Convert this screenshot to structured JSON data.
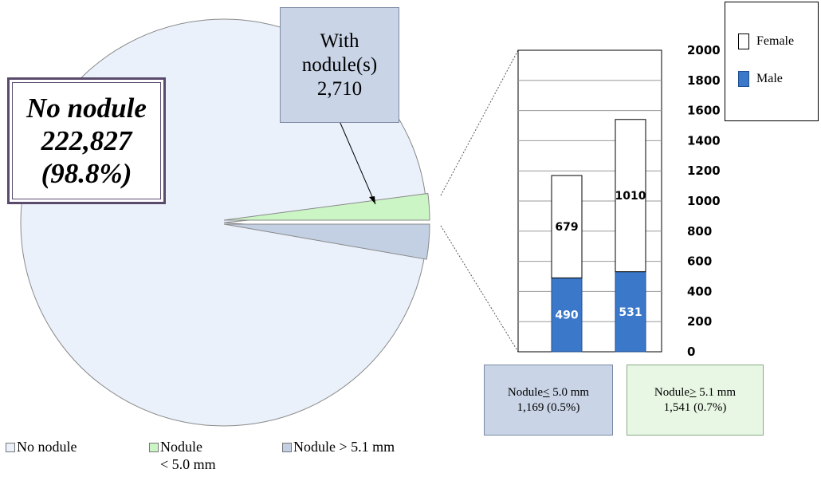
{
  "chart_data": [
    {
      "type": "pie",
      "slices": [
        {
          "label": "No nodule",
          "value": 222827,
          "color": "#eaf1fb"
        },
        {
          "label": "Nodule < 5.0 mm",
          "value": 1169,
          "color": "#ccf5c6"
        },
        {
          "label": "Nodule > 5.1 mm",
          "value": 1541,
          "color": "#c3cfe2"
        }
      ],
      "legend": [
        {
          "label": "No nodule",
          "color": "#eaf1fb"
        },
        {
          "label_line1": "Nodule",
          "label_line2": "< 5.0 mm",
          "color": "#ccf5c6"
        },
        {
          "label": "Nodule > 5.1 mm",
          "color": "#c3cfe2"
        }
      ],
      "legend_position": "bottom",
      "callouts": {
        "no_nodule": {
          "line1": "No nodule",
          "line2": "222,827",
          "line3": "(98.8%)"
        },
        "with_nodules": {
          "line1": "With",
          "line2": "nodule(s)",
          "line3": "2,710"
        }
      }
    },
    {
      "type": "bar",
      "stacked": true,
      "categories": [
        "Nodule < 5.0 mm",
        "Nodule > 5.1 mm"
      ],
      "series": [
        {
          "name": "Male",
          "values": [
            490,
            531
          ],
          "color": "#3b78c9"
        },
        {
          "name": "Female",
          "values": [
            679,
            1010
          ],
          "color": "#ffffff"
        }
      ],
      "ylim": [
        0,
        2000
      ],
      "yticks": [
        "0",
        "200",
        "400",
        "600",
        "800",
        "1000",
        "1200",
        "1400",
        "1600",
        "1800",
        "2000"
      ],
      "grid": true,
      "legend_position": "top-right",
      "legend": [
        {
          "name": "Female",
          "color": "#ffffff"
        },
        {
          "name": "Male",
          "color": "#3b78c9"
        }
      ],
      "category_boxes": [
        {
          "prefix": "Nodule",
          "op": "<",
          "size": "5.0 mm",
          "count": "1,169 (0.5%)",
          "bg": "#c9d4e6"
        },
        {
          "prefix": "Nodule",
          "op": ">",
          "size": "5.1 mm",
          "count": "1,541 (0.7%)",
          "bg": "#e8f7e4"
        }
      ]
    }
  ]
}
